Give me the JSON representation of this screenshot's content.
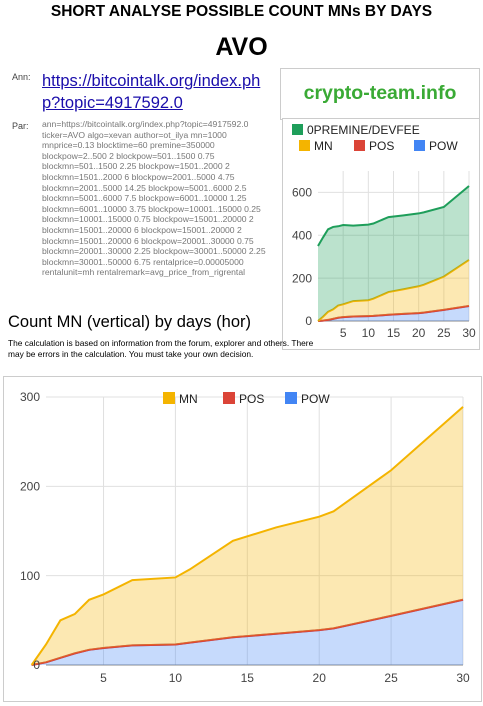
{
  "header": {
    "title": "SHORT ANALYSE POSSIBLE COUNT MNs BY DAYS",
    "coin": "AVO",
    "ann_label": "Ann:",
    "ann_link": "https://bitcointalk.org/index.php?topic=4917592.0",
    "brand": "crypto-team.info",
    "par_label": "Par:",
    "par_text": "ann=https://bitcointalk.org/index.php?topic=4917592.0 ticker=AVO algo=xevan author=ot_ilya mn=1000 mnprice=0.13 blocktime=60 premine=350000 blockpow=2..500 2 blockpow=501..1500 0.75 blockmn=501..1500 2.25 blockpow=1501..2000 2 blockmn=1501..2000 6 blockpow=2001..5000 4.75 blockmn=2001..5000 14.25 blockpow=5001..6000 2.5 blockmn=5001..6000 7.5 blockpow=6001..10000 1.25 blockmn=6001..10000 3.75 blockpow=10001..15000 0.25 blockmn=10001..15000 0.75 blockpow=15001..20000 2 blockmn=15001..20000 6 blockpow=15001..20000 2 blockmn=15001..20000 6 blockpow=20001..30000 0.75 blockmn=20001..30000 2.25 blockpow=30001..50000 2.25 blockmn=30001..50000 6.75 rentalprice=0.00005000 rentalunit=mh rentalremark=avg_price_from_rigrental",
    "section_title": "Count MN (vertical) by days (hor)",
    "disclaimer": "The calculation is based on information from the forum, explorer and others. There may be errors in the calculation. You must take your own decision."
  },
  "colors": {
    "premine": "#1e9e5a",
    "mn": "#f4b400",
    "pos": "#db4437",
    "pow": "#4285f4",
    "brand": "#3aaa35",
    "link": "#1a0dab"
  },
  "chart_data": [
    {
      "type": "area",
      "stacked": true,
      "legend_position": "top",
      "grid": true,
      "xlim": [
        0,
        30
      ],
      "ylim": [
        0,
        700
      ],
      "x_ticks": [
        5,
        10,
        15,
        20,
        25,
        30
      ],
      "y_ticks": [
        0,
        200,
        400,
        600
      ],
      "x": [
        0,
        1,
        2,
        3,
        4,
        5,
        7,
        10,
        11,
        14,
        17,
        20,
        21,
        25,
        30
      ],
      "series": [
        {
          "name": "POW",
          "values": [
            0,
            2,
            5,
            10,
            15,
            18,
            21,
            23,
            24,
            29,
            33,
            37,
            39,
            52,
            70
          ]
        },
        {
          "name": "POS",
          "values": [
            0,
            0,
            0,
            0,
            0,
            0,
            0,
            0,
            0,
            0,
            0,
            0,
            0,
            0,
            0
          ]
        },
        {
          "name": "MN",
          "values": [
            0,
            18,
            38,
            44,
            57,
            60,
            72,
            74,
            80,
            106,
            115,
            125,
            130,
            155,
            215
          ]
        },
        {
          "name": "0PREMINE/DEVFEE",
          "values": [
            350,
            370,
            385,
            385,
            370,
            370,
            352,
            353,
            351,
            350,
            345,
            340,
            338,
            325,
            345
          ]
        }
      ]
    },
    {
      "type": "area",
      "stacked": true,
      "legend_position": "top",
      "grid": true,
      "xlim": [
        1,
        30
      ],
      "ylim": [
        0,
        300
      ],
      "x_ticks": [
        5,
        10,
        15,
        20,
        25,
        30
      ],
      "y_ticks": [
        0,
        100,
        200,
        300
      ],
      "x": [
        0,
        1,
        2,
        3,
        4,
        5,
        7,
        10,
        11,
        14,
        17,
        20,
        21,
        25,
        30
      ],
      "series": [
        {
          "name": "POW",
          "values": [
            0,
            3,
            8,
            13,
            17,
            19,
            22,
            23,
            25,
            31,
            35,
            39,
            41,
            55,
            73
          ]
        },
        {
          "name": "POS",
          "values": [
            0,
            0,
            0,
            0,
            0,
            0,
            0,
            0,
            0,
            0,
            0,
            0,
            0,
            0,
            0
          ]
        },
        {
          "name": "MN",
          "values": [
            0,
            20,
            42,
            44,
            56,
            60,
            73,
            75,
            82,
            108,
            119,
            127,
            131,
            163,
            216
          ]
        }
      ]
    }
  ]
}
